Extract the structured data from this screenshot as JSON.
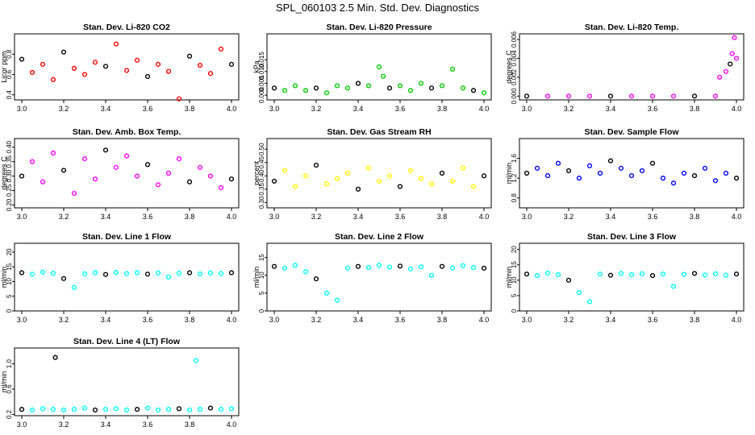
{
  "page_title": "SPL_060103  2.5 Min. Std. Dev. Diagnostics",
  "colors": {
    "black": "#000000",
    "red": "#ff0000",
    "green": "#00cc00",
    "magenta": "#ff00ff",
    "yellow": "#ffff00",
    "blue": "#0000ff",
    "cyan": "#00ffff"
  },
  "chart_data": [
    {
      "type": "scatter",
      "title": "Stan. Dev. Li-820 CO2",
      "xlabel": "",
      "ylabel": "Licor ppm",
      "xlim": [
        3.0,
        4.0
      ],
      "ylim": [
        0.35,
        1.0
      ],
      "xticks": [
        "3.0",
        "3.2",
        "3.4",
        "3.6",
        "3.8",
        "4.0"
      ],
      "yticks": [
        "0.4",
        "0.6",
        "0.8"
      ],
      "ytick_values": [
        0.4,
        0.6,
        0.8
      ],
      "series_colors": [
        "#ff0000",
        "#000000"
      ],
      "grid": false,
      "points": [
        [
          3.0,
          0.75
        ],
        [
          3.05,
          0.62
        ],
        [
          3.1,
          0.7
        ],
        [
          3.15,
          0.55
        ],
        [
          3.2,
          0.82
        ],
        [
          3.25,
          0.66
        ],
        [
          3.3,
          0.6
        ],
        [
          3.35,
          0.72
        ],
        [
          3.4,
          0.68
        ],
        [
          3.45,
          0.9
        ],
        [
          3.5,
          0.64
        ],
        [
          3.55,
          0.74
        ],
        [
          3.6,
          0.58
        ],
        [
          3.65,
          0.7
        ],
        [
          3.7,
          0.63
        ],
        [
          3.75,
          0.36
        ],
        [
          3.8,
          0.78
        ],
        [
          3.85,
          0.69
        ],
        [
          3.9,
          0.61
        ],
        [
          3.95,
          0.85
        ],
        [
          4.0,
          0.7
        ]
      ]
    },
    {
      "type": "scatter",
      "title": "Stan. Dev. Li-820 Pressure",
      "xlabel": "",
      "ylabel": "kPa",
      "xlim": [
        3.0,
        4.0
      ],
      "ylim": [
        -0.002,
        0.026
      ],
      "xticks": [
        "3.0",
        "3.2",
        "3.4",
        "3.6",
        "3.8",
        "4.0"
      ],
      "yticks": [
        "0.000",
        "0.005",
        "0.010",
        "0.015"
      ],
      "ytick_values": [
        0.0,
        0.005,
        0.01,
        0.015
      ],
      "series_colors": [
        "#00cc00",
        "#000000"
      ],
      "grid": false,
      "points": [
        [
          3.0,
          0.003
        ],
        [
          3.05,
          0.002
        ],
        [
          3.1,
          0.004
        ],
        [
          3.15,
          0.002
        ],
        [
          3.2,
          0.003
        ],
        [
          3.25,
          0.001
        ],
        [
          3.3,
          0.004
        ],
        [
          3.35,
          0.003
        ],
        [
          3.4,
          0.005
        ],
        [
          3.45,
          0.004
        ],
        [
          3.5,
          0.012
        ],
        [
          3.52,
          0.008
        ],
        [
          3.55,
          0.003
        ],
        [
          3.6,
          0.004
        ],
        [
          3.65,
          0.002
        ],
        [
          3.7,
          0.005
        ],
        [
          3.75,
          0.003
        ],
        [
          3.8,
          0.004
        ],
        [
          3.85,
          0.011
        ],
        [
          3.9,
          0.003
        ],
        [
          3.95,
          0.002
        ],
        [
          4.0,
          0.001
        ]
      ]
    },
    {
      "type": "scatter",
      "title": "Stan. Dev. Li-820 Temp.",
      "xlabel": "",
      "ylabel": "degrees C",
      "xlim": [
        3.0,
        4.0
      ],
      "ylim": [
        -0.0004,
        0.0066
      ],
      "xticks": [
        "3.0",
        "3.2",
        "3.4",
        "3.6",
        "3.8",
        "4.0"
      ],
      "yticks": [
        "0.000",
        "0.002",
        "0.004",
        "0.006"
      ],
      "ytick_values": [
        0.0,
        0.002,
        0.004,
        0.006
      ],
      "series_colors": [
        "#ff00ff",
        "#000000"
      ],
      "grid": false,
      "points": [
        [
          3.0,
          0.0
        ],
        [
          3.1,
          0.0
        ],
        [
          3.2,
          0.0
        ],
        [
          3.3,
          0.0
        ],
        [
          3.4,
          0.0
        ],
        [
          3.5,
          0.0
        ],
        [
          3.6,
          0.0
        ],
        [
          3.7,
          0.0
        ],
        [
          3.8,
          0.0
        ],
        [
          3.9,
          0.0
        ],
        [
          3.92,
          0.002
        ],
        [
          3.95,
          0.0026
        ],
        [
          3.97,
          0.0034
        ],
        [
          3.98,
          0.0045
        ],
        [
          3.99,
          0.0062
        ],
        [
          4.0,
          0.004
        ]
      ]
    },
    {
      "type": "scatter",
      "title": "Stan. Dev. Amb. Box Temp.",
      "xlabel": "",
      "ylabel": "degrees C",
      "xlim": [
        3.0,
        4.0
      ],
      "ylim": [
        0.19,
        0.43
      ],
      "xticks": [
        "3.0",
        "3.2",
        "3.4",
        "3.6",
        "3.8",
        "4.0"
      ],
      "yticks": [
        "0.20",
        "0.25",
        "0.30",
        "0.35",
        "0.40"
      ],
      "ytick_values": [
        0.2,
        0.25,
        0.3,
        0.35,
        0.4
      ],
      "series_colors": [
        "#ff00ff",
        "#000000"
      ],
      "grid": false,
      "points": [
        [
          3.0,
          0.3
        ],
        [
          3.05,
          0.35
        ],
        [
          3.1,
          0.28
        ],
        [
          3.15,
          0.38
        ],
        [
          3.2,
          0.32
        ],
        [
          3.25,
          0.24
        ],
        [
          3.3,
          0.36
        ],
        [
          3.35,
          0.29
        ],
        [
          3.4,
          0.39
        ],
        [
          3.45,
          0.33
        ],
        [
          3.5,
          0.37
        ],
        [
          3.55,
          0.3
        ],
        [
          3.6,
          0.34
        ],
        [
          3.65,
          0.27
        ],
        [
          3.7,
          0.31
        ],
        [
          3.75,
          0.36
        ],
        [
          3.8,
          0.28
        ],
        [
          3.85,
          0.33
        ],
        [
          3.9,
          0.3
        ],
        [
          3.95,
          0.26
        ],
        [
          4.0,
          0.29
        ]
      ]
    },
    {
      "type": "scatter",
      "title": "Stan. Dev. Gas Stream RH",
      "xlabel": "",
      "ylabel": "percent",
      "xlim": [
        3.0,
        4.0
      ],
      "ylim": [
        0.28,
        0.54
      ],
      "xticks": [
        "3.0",
        "3.2",
        "3.4",
        "3.6",
        "3.8",
        "4.0"
      ],
      "yticks": [
        "0.30",
        "0.35",
        "0.40",
        "0.45",
        "0.50"
      ],
      "ytick_values": [
        0.3,
        0.35,
        0.4,
        0.45,
        0.5
      ],
      "series_colors": [
        "#ffff00",
        "#000000"
      ],
      "grid": false,
      "points": [
        [
          3.0,
          0.38
        ],
        [
          3.05,
          0.42
        ],
        [
          3.1,
          0.36
        ],
        [
          3.15,
          0.4
        ],
        [
          3.2,
          0.44
        ],
        [
          3.25,
          0.37
        ],
        [
          3.3,
          0.39
        ],
        [
          3.35,
          0.41
        ],
        [
          3.4,
          0.35
        ],
        [
          3.45,
          0.43
        ],
        [
          3.5,
          0.38
        ],
        [
          3.55,
          0.4
        ],
        [
          3.6,
          0.36
        ],
        [
          3.65,
          0.42
        ],
        [
          3.7,
          0.39
        ],
        [
          3.75,
          0.37
        ],
        [
          3.8,
          0.41
        ],
        [
          3.85,
          0.38
        ],
        [
          3.9,
          0.43
        ],
        [
          3.95,
          0.36
        ],
        [
          4.0,
          0.4
        ]
      ]
    },
    {
      "type": "scatter",
      "title": "Stan. Dev. Sample Flow",
      "xlabel": "",
      "ylabel": "ml/min",
      "xlim": [
        3.0,
        4.0
      ],
      "ylim": [
        0.6,
        2.0
      ],
      "xticks": [
        "3.0",
        "3.2",
        "3.4",
        "3.6",
        "3.8",
        "4.0"
      ],
      "yticks": [
        "0.8",
        "1.2",
        "1.6"
      ],
      "ytick_values": [
        0.8,
        1.2,
        1.6
      ],
      "series_colors": [
        "#0000ff",
        "#000000"
      ],
      "grid": false,
      "points": [
        [
          3.0,
          1.3
        ],
        [
          3.05,
          1.4
        ],
        [
          3.1,
          1.25
        ],
        [
          3.15,
          1.5
        ],
        [
          3.2,
          1.35
        ],
        [
          3.25,
          1.2
        ],
        [
          3.3,
          1.45
        ],
        [
          3.35,
          1.3
        ],
        [
          3.4,
          1.55
        ],
        [
          3.45,
          1.4
        ],
        [
          3.5,
          1.25
        ],
        [
          3.55,
          1.35
        ],
        [
          3.6,
          1.5
        ],
        [
          3.65,
          1.2
        ],
        [
          3.7,
          1.1
        ],
        [
          3.75,
          1.3
        ],
        [
          3.8,
          1.25
        ],
        [
          3.85,
          1.4
        ],
        [
          3.9,
          1.15
        ],
        [
          3.95,
          1.3
        ],
        [
          4.0,
          1.2
        ]
      ]
    },
    {
      "type": "scatter",
      "title": "Stan. Dev. Line 1 Flow",
      "xlabel": "",
      "ylabel": "ml/min",
      "xlim": [
        3.0,
        4.0
      ],
      "ylim": [
        0,
        23
      ],
      "xticks": [
        "3.0",
        "3.2",
        "3.4",
        "3.6",
        "3.8",
        "4.0"
      ],
      "yticks": [
        "0",
        "5",
        "10",
        "15",
        "20"
      ],
      "ytick_values": [
        0,
        5,
        10,
        15,
        20
      ],
      "series_colors": [
        "#00ffff",
        "#000000"
      ],
      "grid": false,
      "points": [
        [
          3.0,
          13
        ],
        [
          3.05,
          12.5
        ],
        [
          3.1,
          13.2
        ],
        [
          3.15,
          12.8
        ],
        [
          3.2,
          11
        ],
        [
          3.25,
          8
        ],
        [
          3.3,
          12.6
        ],
        [
          3.35,
          13
        ],
        [
          3.4,
          12.4
        ],
        [
          3.45,
          13.1
        ],
        [
          3.5,
          12.7
        ],
        [
          3.55,
          13
        ],
        [
          3.6,
          12.5
        ],
        [
          3.65,
          12.9
        ],
        [
          3.7,
          11.5
        ],
        [
          3.75,
          12.8
        ],
        [
          3.8,
          13
        ],
        [
          3.85,
          12.6
        ],
        [
          3.9,
          12.9
        ],
        [
          3.95,
          12.7
        ],
        [
          4.0,
          13
        ]
      ]
    },
    {
      "type": "scatter",
      "title": "Stan. Dev. Line 2 Flow",
      "xlabel": "",
      "ylabel": "ml/min",
      "xlim": [
        3.0,
        4.0
      ],
      "ylim": [
        0,
        19
      ],
      "xticks": [
        "3.0",
        "3.2",
        "3.4",
        "3.6",
        "3.8",
        "4.0"
      ],
      "yticks": [
        "0",
        "5",
        "10",
        "15"
      ],
      "ytick_values": [
        0,
        5,
        10,
        15
      ],
      "series_colors": [
        "#00ffff",
        "#000000"
      ],
      "grid": false,
      "points": [
        [
          3.0,
          12.5
        ],
        [
          3.05,
          12
        ],
        [
          3.1,
          12.8
        ],
        [
          3.15,
          11
        ],
        [
          3.2,
          9
        ],
        [
          3.25,
          5
        ],
        [
          3.3,
          3
        ],
        [
          3.35,
          12
        ],
        [
          3.4,
          12.5
        ],
        [
          3.45,
          12.2
        ],
        [
          3.5,
          12.8
        ],
        [
          3.55,
          12.3
        ],
        [
          3.6,
          12.6
        ],
        [
          3.65,
          11.8
        ],
        [
          3.7,
          12.4
        ],
        [
          3.75,
          10
        ],
        [
          3.8,
          12.5
        ],
        [
          3.85,
          12.1
        ],
        [
          3.9,
          12.7
        ],
        [
          3.95,
          12.2
        ],
        [
          4.0,
          12
        ]
      ]
    },
    {
      "type": "scatter",
      "title": "Stan. Dev. Line 3 Flow",
      "xlabel": "",
      "ylabel": "ml/min",
      "xlim": [
        3.0,
        4.0
      ],
      "ylim": [
        0,
        22
      ],
      "xticks": [
        "3.0",
        "3.2",
        "3.4",
        "3.6",
        "3.8",
        "4.0"
      ],
      "yticks": [
        "0",
        "5",
        "10",
        "15",
        "20"
      ],
      "ytick_values": [
        0,
        5,
        10,
        15,
        20
      ],
      "series_colors": [
        "#00ffff",
        "#000000"
      ],
      "grid": false,
      "points": [
        [
          3.0,
          12
        ],
        [
          3.05,
          11.5
        ],
        [
          3.1,
          12.3
        ],
        [
          3.15,
          11.8
        ],
        [
          3.2,
          10
        ],
        [
          3.25,
          6
        ],
        [
          3.3,
          3
        ],
        [
          3.35,
          12
        ],
        [
          3.4,
          11.6
        ],
        [
          3.45,
          12.2
        ],
        [
          3.5,
          11.8
        ],
        [
          3.55,
          12.1
        ],
        [
          3.6,
          11.5
        ],
        [
          3.65,
          12
        ],
        [
          3.7,
          8
        ],
        [
          3.75,
          11.9
        ],
        [
          3.8,
          12.2
        ],
        [
          3.85,
          11.7
        ],
        [
          3.9,
          12.1
        ],
        [
          3.95,
          11.6
        ],
        [
          4.0,
          12
        ]
      ]
    },
    {
      "type": "scatter",
      "title": "Stan. Dev. Line 4 (LT) Flow",
      "xlabel": "",
      "ylabel": "ml/min",
      "xlim": [
        3.0,
        4.0
      ],
      "ylim": [
        0.18,
        1.25
      ],
      "xticks": [
        "3.0",
        "3.2",
        "3.4",
        "3.6",
        "3.8",
        "4.0"
      ],
      "yticks": [
        "0.2",
        "0.6",
        "1.0"
      ],
      "ytick_values": [
        0.2,
        0.6,
        1.0
      ],
      "series_colors": [
        "#00ffff",
        "#000000"
      ],
      "grid": false,
      "points": [
        [
          3.0,
          0.28
        ],
        [
          3.05,
          0.27
        ],
        [
          3.1,
          0.29
        ],
        [
          3.15,
          0.28
        ],
        [
          3.16,
          1.1
        ],
        [
          3.2,
          0.27
        ],
        [
          3.25,
          0.28
        ],
        [
          3.3,
          0.3
        ],
        [
          3.35,
          0.27
        ],
        [
          3.4,
          0.28
        ],
        [
          3.45,
          0.29
        ],
        [
          3.5,
          0.27
        ],
        [
          3.55,
          0.28
        ],
        [
          3.6,
          0.3
        ],
        [
          3.65,
          0.27
        ],
        [
          3.7,
          0.28
        ],
        [
          3.75,
          0.29
        ],
        [
          3.8,
          0.27
        ],
        [
          3.83,
          1.05
        ],
        [
          3.85,
          0.28
        ],
        [
          3.9,
          0.3
        ],
        [
          3.95,
          0.28
        ],
        [
          4.0,
          0.29
        ]
      ]
    }
  ]
}
